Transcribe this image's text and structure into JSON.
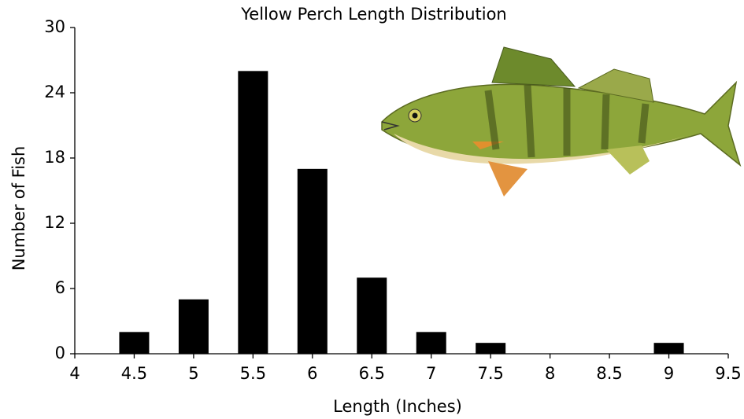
{
  "chart_data": {
    "type": "bar",
    "title": "Yellow Perch Length Distribution",
    "xlabel": "Length (Inches)",
    "ylabel": "Number of Fish",
    "x": [
      4.5,
      5,
      5.5,
      6,
      6.5,
      7,
      7.5,
      8,
      8.5,
      9
    ],
    "values": [
      2,
      5,
      26,
      17,
      7,
      2,
      1,
      0,
      0,
      1
    ],
    "color": "#000000",
    "xlim": [
      4,
      9.5
    ],
    "xticks": [
      4,
      4.5,
      5,
      5.5,
      6,
      6.5,
      7,
      7.5,
      8,
      8.5,
      9,
      9.5
    ],
    "ylim": [
      0,
      30
    ],
    "yticks": [
      0,
      6,
      12,
      18,
      24,
      30
    ],
    "grid": false
  }
}
